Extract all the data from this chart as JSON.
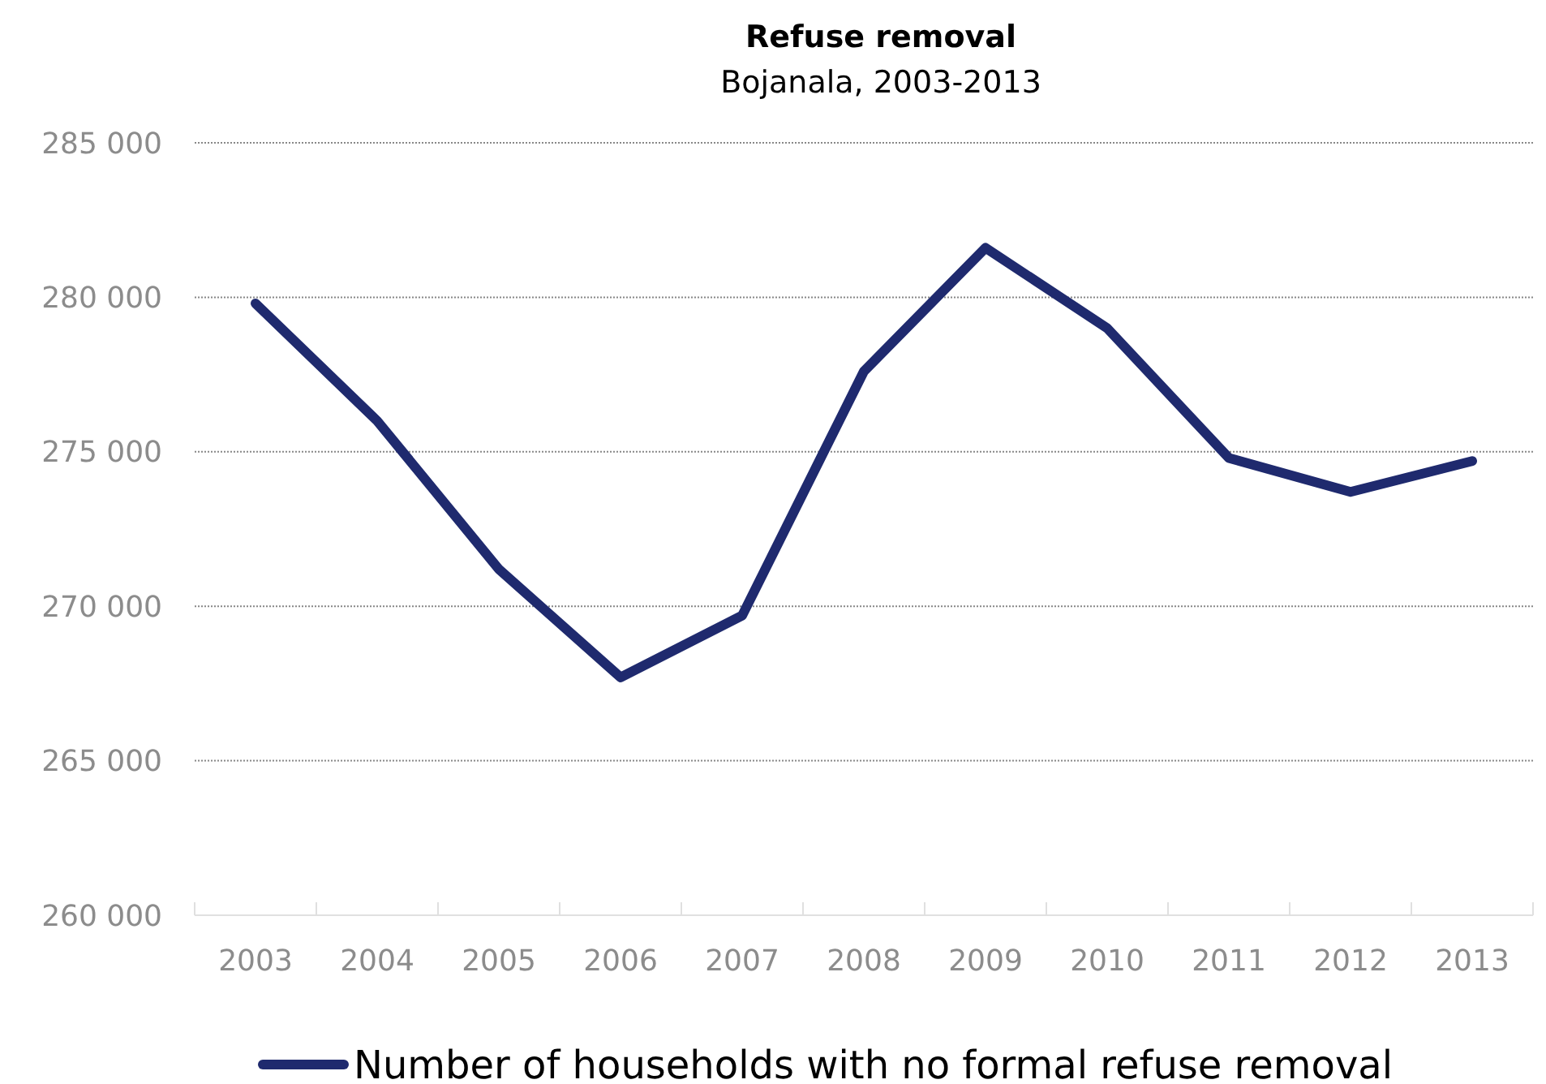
{
  "chart_data": {
    "type": "line",
    "title": "Refuse removal",
    "subtitle": "Bojanala, 2003-2013",
    "categories": [
      "2003",
      "2004",
      "2005",
      "2006",
      "2007",
      "2008",
      "2009",
      "2010",
      "2011",
      "2012",
      "2013"
    ],
    "series": [
      {
        "name": "Number of households with no formal refuse removal",
        "color": "#1f2a6e",
        "values": [
          279800,
          276000,
          271200,
          267700,
          269700,
          277600,
          281600,
          279000,
          274800,
          273700,
          274700
        ]
      }
    ],
    "ylim": [
      260000,
      285000
    ],
    "yticks": [
      {
        "value": 260000,
        "label": "260 000"
      },
      {
        "value": 265000,
        "label": "265 000"
      },
      {
        "value": 270000,
        "label": "270 000"
      },
      {
        "value": 275000,
        "label": "275 000"
      },
      {
        "value": 280000,
        "label": "280 000"
      },
      {
        "value": 285000,
        "label": "285 000"
      }
    ],
    "grid": "y",
    "legend": "bottom",
    "marker": "none",
    "line_style": "solid"
  }
}
